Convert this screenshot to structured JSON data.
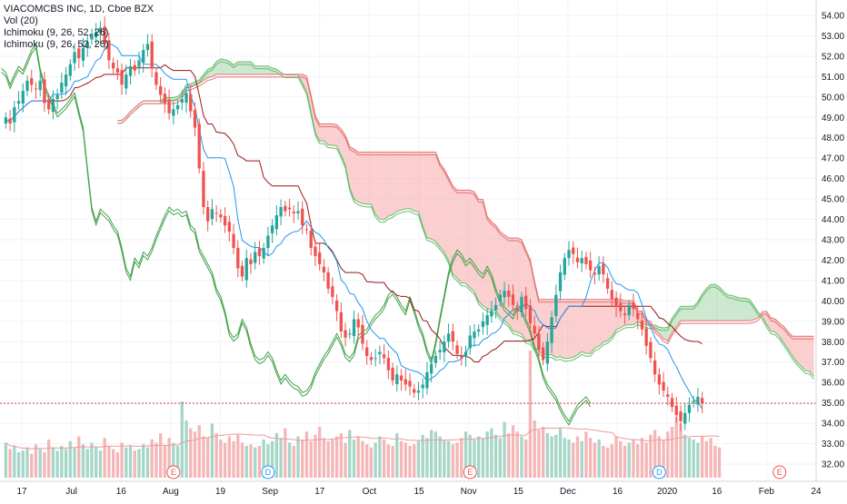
{
  "chart_data": {
    "type": "candlestick",
    "title": "VIACOMCBS INC, 1D, Cboe BZX",
    "indicators": [
      "Vol (20)",
      "Ichimoku (9, 26, 52, 26)",
      "Ichimoku (9, 26, 52, 26)"
    ],
    "last_price": "34.98",
    "y_ticks": [
      "54.00",
      "53.00",
      "52.00",
      "51.00",
      "50.00",
      "49.00",
      "48.00",
      "47.00",
      "46.00",
      "45.00",
      "44.00",
      "43.00",
      "42.00",
      "41.00",
      "40.00",
      "39.00",
      "38.00",
      "37.00",
      "36.00",
      "35.00",
      "34.00",
      "33.00",
      "32.00"
    ],
    "x_ticks": [
      "17",
      "Jul",
      "16",
      "Aug",
      "19",
      "Sep",
      "17",
      "Oct",
      "15",
      "Nov",
      "15",
      "Dec",
      "16",
      "2020",
      "16",
      "Feb",
      "24"
    ],
    "ylim": [
      31.6,
      54.4
    ],
    "colors": {
      "up": "#26a69a",
      "down": "#ef5350",
      "up_vol": "#a5d6c8",
      "down_vol": "#f4b6b6",
      "tenkan": "#2196f3",
      "kijun": "#991515",
      "lagging": "#43a047",
      "cloud_up": "#a5d6a7",
      "cloud_down": "#f8a7a7",
      "price_line": "#e53935"
    },
    "events": [
      {
        "label": "E",
        "type": "earnings",
        "x_index": 39
      },
      {
        "label": "D",
        "type": "dividend",
        "x_index": 61
      },
      {
        "label": "E",
        "type": "earnings",
        "x_index": 108
      },
      {
        "label": "D",
        "type": "dividend",
        "x_index": 152
      },
      {
        "label": "E",
        "type": "earnings",
        "x_index": 180
      }
    ],
    "series_close": [
      49,
      48.7,
      49.5,
      49.8,
      50.3,
      50.8,
      50.6,
      50.4,
      50.8,
      49.7,
      49.4,
      49.9,
      50.1,
      50.7,
      51.1,
      51.6,
      52.2,
      51.9,
      52.4,
      52.7,
      53.1,
      53.2,
      53.4,
      52.6,
      51.8,
      51.4,
      51.2,
      50.6,
      51.1,
      51.5,
      51.3,
      51.8,
      52.3,
      52.6,
      51.4,
      50.6,
      50.1,
      49.7,
      49.2,
      49.4,
      49.6,
      49.9,
      50.2,
      49.3,
      48.5,
      46.5,
      44.6,
      43.9,
      44.5,
      44.3,
      44.1,
      43.7,
      43.4,
      42.6,
      41.6,
      41.2,
      42.1,
      41.8,
      42.4,
      42.2,
      42.6,
      43.2,
      43.7,
      44.2,
      44.6,
      44.4,
      44.5,
      44.3,
      44.4,
      43.7,
      43.5,
      42.6,
      42.2,
      41.8,
      41.4,
      40.6,
      40.2,
      39.5,
      38.5,
      38.2,
      38.4,
      39.1,
      38.7,
      37.9,
      37.3,
      37.1,
      37.2,
      37.5,
      37.2,
      36.6,
      36.1,
      36.4,
      36.1,
      35.9,
      35.8,
      35.5,
      35.6,
      35.9,
      36.5,
      36.9,
      37.3,
      37.6,
      38.0,
      38.4,
      38.0,
      37.4,
      37.2,
      37.5,
      38.3,
      38.5,
      38.6,
      39.0,
      39.3,
      39.5,
      39.8,
      40.3,
      40.5,
      40.2,
      39.8,
      39.5,
      40.2,
      39.6,
      38.9,
      38.4,
      37.6,
      37.1,
      38.0,
      39.2,
      40.3,
      41.4,
      42.1,
      42.5,
      42.3,
      41.9,
      42.1,
      41.8,
      41.5,
      41.3,
      41.7,
      41.3,
      40.6,
      40.1,
      39.7,
      39.5,
      39.3,
      39.8,
      39.6,
      39.1,
      38.6,
      37.8,
      37.2,
      36.4,
      35.9,
      35.6,
      35.3,
      34.8,
      34.4,
      34.1,
      34.5,
      34.9,
      35.1,
      35.3,
      34.98
    ],
    "series_volume": [
      2.2,
      1.8,
      2.0,
      1.6,
      1.7,
      1.9,
      1.5,
      2.1,
      1.8,
      1.6,
      2.4,
      1.9,
      1.7,
      2.0,
      1.8,
      2.3,
      1.9,
      2.6,
      2.1,
      1.8,
      2.2,
      1.9,
      1.7,
      2.5,
      2.0,
      1.8,
      1.6,
      2.2,
      1.9,
      2.0,
      1.7,
      1.8,
      2.1,
      1.9,
      2.4,
      2.2,
      2.8,
      2.0,
      2.5,
      2.2,
      2.0,
      4.8,
      3.6,
      3.1,
      2.9,
      3.3,
      2.6,
      2.5,
      3.4,
      2.8,
      2.4,
      2.2,
      2.6,
      2.3,
      2.7,
      2.2,
      2.0,
      2.1,
      1.9,
      2.0,
      2.4,
      2.1,
      2.3,
      2.8,
      2.5,
      3.1,
      2.2,
      2.0,
      2.6,
      2.4,
      2.9,
      2.3,
      2.7,
      3.2,
      2.5,
      2.3,
      2.4,
      2.6,
      2.8,
      2.2,
      3.0,
      2.4,
      2.6,
      2.3,
      2.1,
      1.9,
      2.2,
      2.6,
      2.4,
      2.1,
      2.0,
      2.8,
      2.3,
      2.2,
      2.0,
      2.1,
      2.3,
      2.7,
      2.5,
      3.0,
      2.9,
      2.6,
      2.4,
      2.3,
      2.1,
      2.2,
      2.5,
      2.9,
      2.7,
      2.4,
      2.6,
      2.5,
      2.9,
      3.1,
      2.7,
      2.5,
      3.5,
      2.8,
      3.3,
      2.9,
      2.6,
      2.4,
      8.0,
      3.6,
      3.0,
      3.2,
      2.8,
      2.6,
      2.7,
      3.1,
      2.5,
      2.4,
      2.2,
      2.6,
      2.3,
      2.9,
      2.5,
      2.2,
      2.4,
      2.0,
      1.9,
      2.1,
      2.6,
      2.3,
      2.0,
      2.2,
      2.4,
      2.1,
      2.5,
      2.2,
      2.7,
      3.0,
      2.6,
      2.4,
      2.9,
      3.2,
      3.8,
      3.4,
      2.7,
      2.5,
      2.4,
      2.2,
      2.6,
      2.3,
      2.5,
      2.0,
      1.9
    ]
  }
}
